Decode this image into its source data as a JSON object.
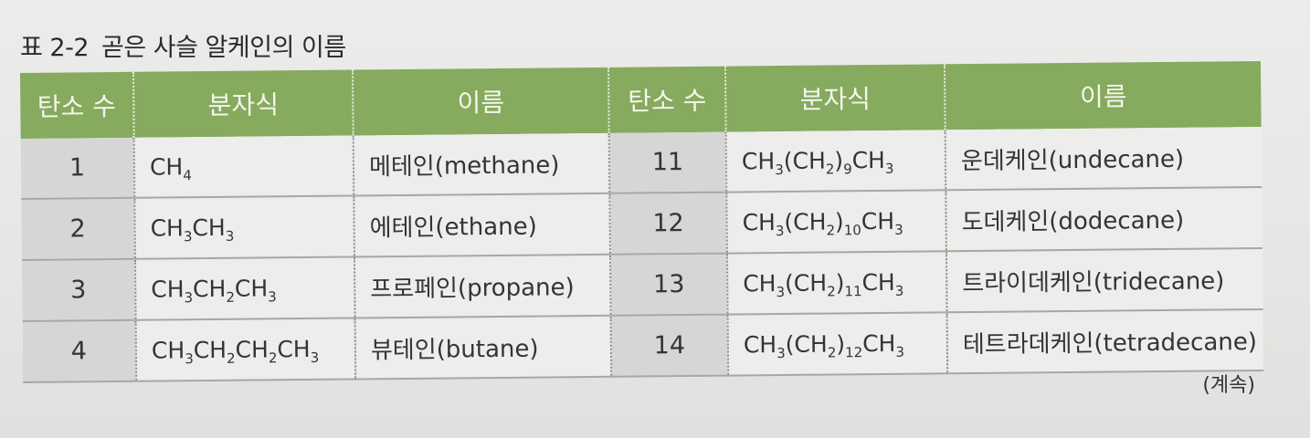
{
  "caption": {
    "number": "표 2-2",
    "title": "곧은 사슬 알케인의 이름"
  },
  "table": {
    "headers": [
      "탄소 수",
      "분자식",
      "이름",
      "탄소 수",
      "분자식",
      "이름"
    ],
    "rows": [
      {
        "left": {
          "carbons": "1",
          "formula": [
            [
              "CH",
              ""
            ],
            [
              "4",
              "sub"
            ]
          ],
          "name": "메테인(methane)"
        },
        "right": {
          "carbons": "11",
          "formula": [
            [
              "CH",
              ""
            ],
            [
              "3",
              "sub"
            ],
            [
              "(CH",
              ""
            ],
            [
              "2",
              "sub"
            ],
            [
              ")",
              ""
            ],
            [
              "9",
              "sub"
            ],
            [
              "CH",
              ""
            ],
            [
              "3",
              "sub"
            ]
          ],
          "name": "운데케인(undecane)"
        }
      },
      {
        "left": {
          "carbons": "2",
          "formula": [
            [
              "CH",
              ""
            ],
            [
              "3",
              "sub"
            ],
            [
              "CH",
              ""
            ],
            [
              "3",
              "sub"
            ]
          ],
          "name": "에테인(ethane)"
        },
        "right": {
          "carbons": "12",
          "formula": [
            [
              "CH",
              ""
            ],
            [
              "3",
              "sub"
            ],
            [
              "(CH",
              ""
            ],
            [
              "2",
              "sub"
            ],
            [
              ")",
              ""
            ],
            [
              "10",
              "sub"
            ],
            [
              "CH",
              ""
            ],
            [
              "3",
              "sub"
            ]
          ],
          "name": "도데케인(dodecane)"
        }
      },
      {
        "left": {
          "carbons": "3",
          "formula": [
            [
              "CH",
              ""
            ],
            [
              "3",
              "sub"
            ],
            [
              "CH",
              ""
            ],
            [
              "2",
              "sub"
            ],
            [
              "CH",
              ""
            ],
            [
              "3",
              "sub"
            ]
          ],
          "name": "프로페인(propane)"
        },
        "right": {
          "carbons": "13",
          "formula": [
            [
              "CH",
              ""
            ],
            [
              "3",
              "sub"
            ],
            [
              "(CH",
              ""
            ],
            [
              "2",
              "sub"
            ],
            [
              ")",
              ""
            ],
            [
              "11",
              "sub"
            ],
            [
              "CH",
              ""
            ],
            [
              "3",
              "sub"
            ]
          ],
          "name": "트라이데케인(tridecane)"
        }
      },
      {
        "left": {
          "carbons": "4",
          "formula": [
            [
              "CH",
              ""
            ],
            [
              "3",
              "sub"
            ],
            [
              "CH",
              ""
            ],
            [
              "2",
              "sub"
            ],
            [
              "CH",
              ""
            ],
            [
              "2",
              "sub"
            ],
            [
              "CH",
              ""
            ],
            [
              "3",
              "sub"
            ]
          ],
          "name": "뷰테인(butane)"
        },
        "right": {
          "carbons": "14",
          "formula": [
            [
              "CH",
              ""
            ],
            [
              "3",
              "sub"
            ],
            [
              "(CH",
              ""
            ],
            [
              "2",
              "sub"
            ],
            [
              ")",
              ""
            ],
            [
              "12",
              "sub"
            ],
            [
              "CH",
              ""
            ],
            [
              "3",
              "sub"
            ]
          ],
          "name": "테트라데케인(tetradecane)"
        }
      }
    ]
  },
  "continued_note": "(계속)"
}
